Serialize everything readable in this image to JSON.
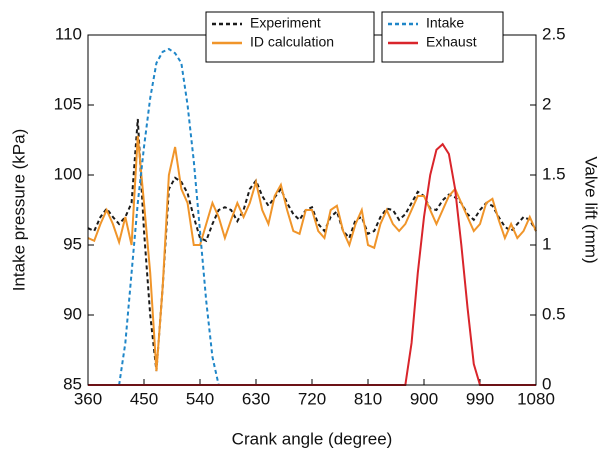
{
  "chart_data": {
    "type": "line",
    "x_label": "Crank angle (degree)",
    "y_label": "Intake pressure (kPa)",
    "y2_label": "Valve lift (mm)",
    "x": [
      360,
      370,
      380,
      390,
      400,
      410,
      420,
      430,
      440,
      450,
      460,
      470,
      480,
      490,
      500,
      510,
      520,
      530,
      540,
      550,
      560,
      570,
      580,
      590,
      600,
      610,
      620,
      630,
      640,
      650,
      660,
      670,
      680,
      690,
      700,
      710,
      720,
      730,
      740,
      750,
      760,
      770,
      780,
      790,
      800,
      810,
      820,
      830,
      840,
      850,
      860,
      870,
      880,
      890,
      900,
      910,
      920,
      930,
      940,
      950,
      960,
      970,
      980,
      990,
      1000,
      1010,
      1020,
      1030,
      1040,
      1050,
      1060,
      1070,
      1080
    ],
    "xlim": [
      360,
      1080
    ],
    "xticks": [
      360,
      450,
      540,
      630,
      720,
      810,
      900,
      990,
      1080
    ],
    "ylim": [
      85,
      110
    ],
    "yticks": [
      85,
      90,
      95,
      100,
      105,
      110
    ],
    "y2lim": [
      0,
      2.5
    ],
    "y2ticks": [
      0,
      0.5,
      1,
      1.5,
      2,
      2.5
    ],
    "series": [
      {
        "name": "Experiment",
        "color": "#1a1a1a",
        "style": "dashed",
        "axis": "y",
        "values": [
          96.2,
          96,
          97,
          97.6,
          97,
          96.5,
          97,
          98,
          104,
          96,
          90,
          86,
          92,
          99,
          99.8,
          99.5,
          98.7,
          97,
          95.5,
          95.3,
          96.5,
          97.5,
          97.7,
          97.5,
          96.7,
          97.5,
          99,
          99.6,
          98.5,
          97.8,
          98.4,
          99,
          98,
          97.2,
          96.8,
          97.5,
          97.7,
          96.5,
          96,
          97,
          97.4,
          96,
          95.5,
          96.8,
          97,
          95.8,
          96,
          97,
          97.6,
          97.5,
          96.8,
          97.2,
          98,
          98.8,
          98.5,
          97.6,
          97.5,
          98.2,
          98.6,
          98.4,
          98,
          97.2,
          96.8,
          97.5,
          98,
          97.8,
          97,
          96.3,
          96,
          96.5,
          97,
          96.8,
          96
        ]
      },
      {
        "name": "ID calculation",
        "color": "#f0952a",
        "style": "solid",
        "axis": "y",
        "values": [
          95.5,
          95.3,
          96.5,
          97.5,
          96.5,
          95.2,
          97,
          95,
          102.8,
          98,
          93,
          86,
          92,
          100,
          102,
          99,
          98,
          95,
          95,
          96.5,
          98,
          97,
          95.5,
          96.8,
          98,
          97,
          98,
          99.5,
          97.5,
          96.5,
          98.5,
          99.3,
          97.5,
          96,
          95.8,
          97.5,
          97.5,
          96,
          95.5,
          97.5,
          97.8,
          96,
          95,
          96.5,
          97.5,
          95,
          94.8,
          96.5,
          97.5,
          96.5,
          96,
          96.5,
          97.5,
          98.5,
          98.5,
          97.5,
          96.5,
          97.5,
          98.5,
          99,
          98,
          97,
          96,
          96.5,
          98,
          98.3,
          96.8,
          95.5,
          96.5,
          95.5,
          96,
          97,
          96
        ]
      },
      {
        "name": "Intake",
        "color": "#1f86c8",
        "style": "dashed",
        "axis": "y2",
        "values": [
          null,
          null,
          null,
          null,
          null,
          0,
          0.3,
          0.8,
          1.3,
          1.7,
          2.05,
          2.3,
          2.38,
          2.4,
          2.37,
          2.3,
          2.0,
          1.6,
          1.1,
          0.6,
          0.2,
          0,
          null,
          null,
          null,
          null,
          null,
          null,
          null,
          null,
          null,
          null,
          null,
          null,
          null,
          null,
          null,
          null,
          null,
          null,
          null,
          null,
          null,
          null,
          null,
          null,
          null,
          null,
          null,
          null,
          null,
          null,
          null,
          null,
          null,
          null,
          null,
          null,
          null,
          null,
          null,
          null,
          null,
          null,
          null,
          null,
          null,
          null,
          null,
          null,
          null,
          null,
          null
        ]
      },
      {
        "name": "Exhaust",
        "color": "#d9252b",
        "style": "solid",
        "axis": "y2",
        "values": [
          0,
          0,
          0,
          0,
          0,
          0,
          0,
          0,
          0,
          0,
          0,
          0,
          0,
          0,
          0,
          0,
          0,
          0,
          0,
          0,
          0,
          0,
          0,
          0,
          0,
          0,
          0,
          0,
          0,
          0,
          0,
          0,
          0,
          0,
          0,
          0,
          0,
          0,
          0,
          0,
          0,
          0,
          0,
          0,
          0,
          0,
          0,
          0,
          0,
          0,
          0,
          0,
          0.3,
          0.8,
          1.2,
          1.5,
          1.68,
          1.72,
          1.65,
          1.4,
          1.0,
          0.55,
          0.15,
          0,
          0,
          0,
          0,
          0,
          0,
          0,
          0,
          0,
          0
        ]
      }
    ]
  }
}
